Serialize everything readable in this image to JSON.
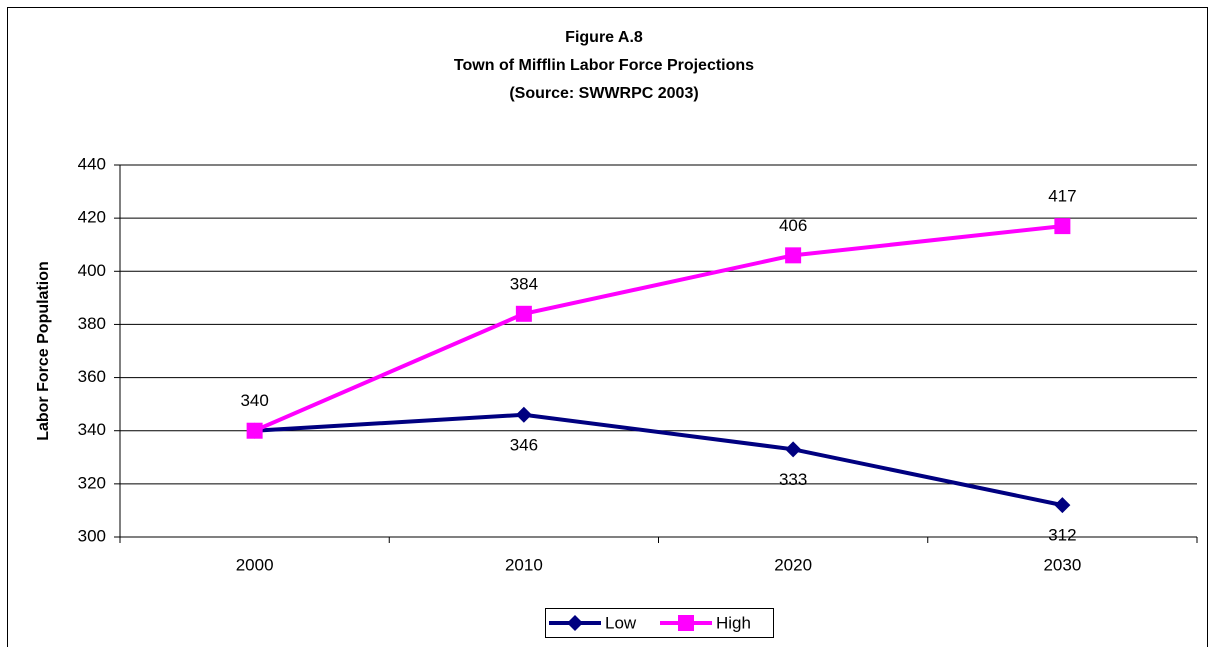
{
  "chart_data": {
    "type": "line",
    "title": "Figure A.8",
    "subtitle": "Town of Mifflin Labor Force Projections",
    "source": "(Source:  SWWRPC 2003)",
    "y_label": "Labor Force Population",
    "categories": [
      "2000",
      "2010",
      "2020",
      "2030"
    ],
    "series": [
      {
        "name": "Low",
        "color": "#000080",
        "marker": "diamond",
        "values": [
          340,
          346,
          333,
          312
        ],
        "value_labels": [
          null,
          "346",
          "333",
          "312"
        ]
      },
      {
        "name": "High",
        "color": "#ff00ff",
        "marker": "square",
        "values": [
          340,
          384,
          406,
          417
        ],
        "value_labels": [
          "340",
          "384",
          "406",
          "417"
        ]
      }
    ],
    "ylim": [
      300,
      440
    ],
    "yticks": [
      300,
      320,
      340,
      360,
      380,
      400,
      420,
      440
    ],
    "grid": true,
    "legend": "bottom"
  }
}
